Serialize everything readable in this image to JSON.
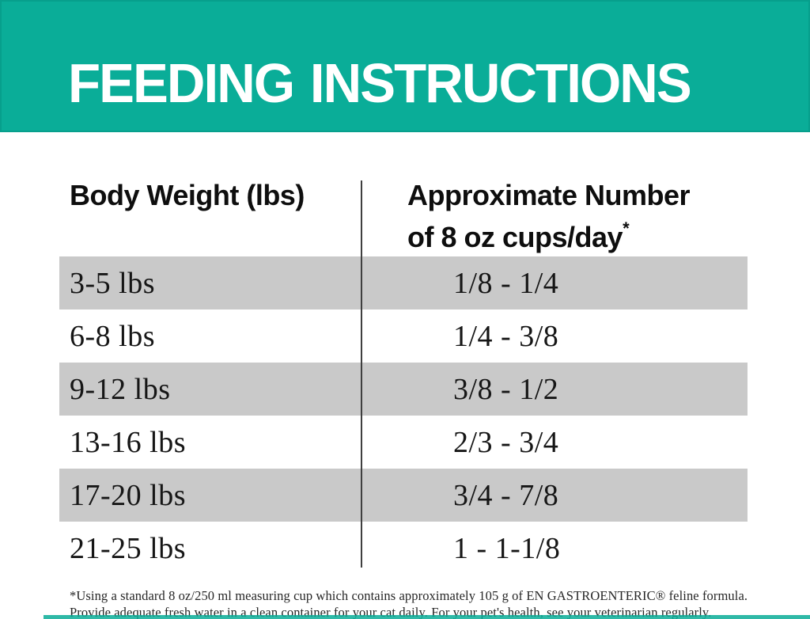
{
  "header": {
    "title": "FEEDING INSTRUCTIONS"
  },
  "table": {
    "col1_header": "Body Weight (lbs)",
    "col2_header_line1": "Approximate Number",
    "col2_header_line2": "of 8 oz cups/day",
    "col2_header_footnote_marker": "*",
    "rows": [
      {
        "weight": "3-5 lbs",
        "cups": "1/8 - 1/4"
      },
      {
        "weight": "6-8 lbs",
        "cups": "1/4 - 3/8"
      },
      {
        "weight": "9-12 lbs",
        "cups": "3/8 - 1/2"
      },
      {
        "weight": "13-16 lbs",
        "cups": "2/3 - 3/4"
      },
      {
        "weight": "17-20 lbs",
        "cups": "3/4 - 7/8"
      },
      {
        "weight": "21-25 lbs",
        "cups": "1 - 1-1/8"
      }
    ]
  },
  "footnote": {
    "line1": "*Using a standard 8 oz/250 ml measuring cup which contains approximately 105 g of EN GASTROENTERIC® feline formula.",
    "line2": "Provide adequate fresh water in a clean container for your cat daily. For your pet's health, see your veterinarian regularly."
  },
  "colors": {
    "teal": "#0aad98",
    "row_gray": "#c9c9c9",
    "divider": "#3f3f3f",
    "text": "#161616"
  }
}
